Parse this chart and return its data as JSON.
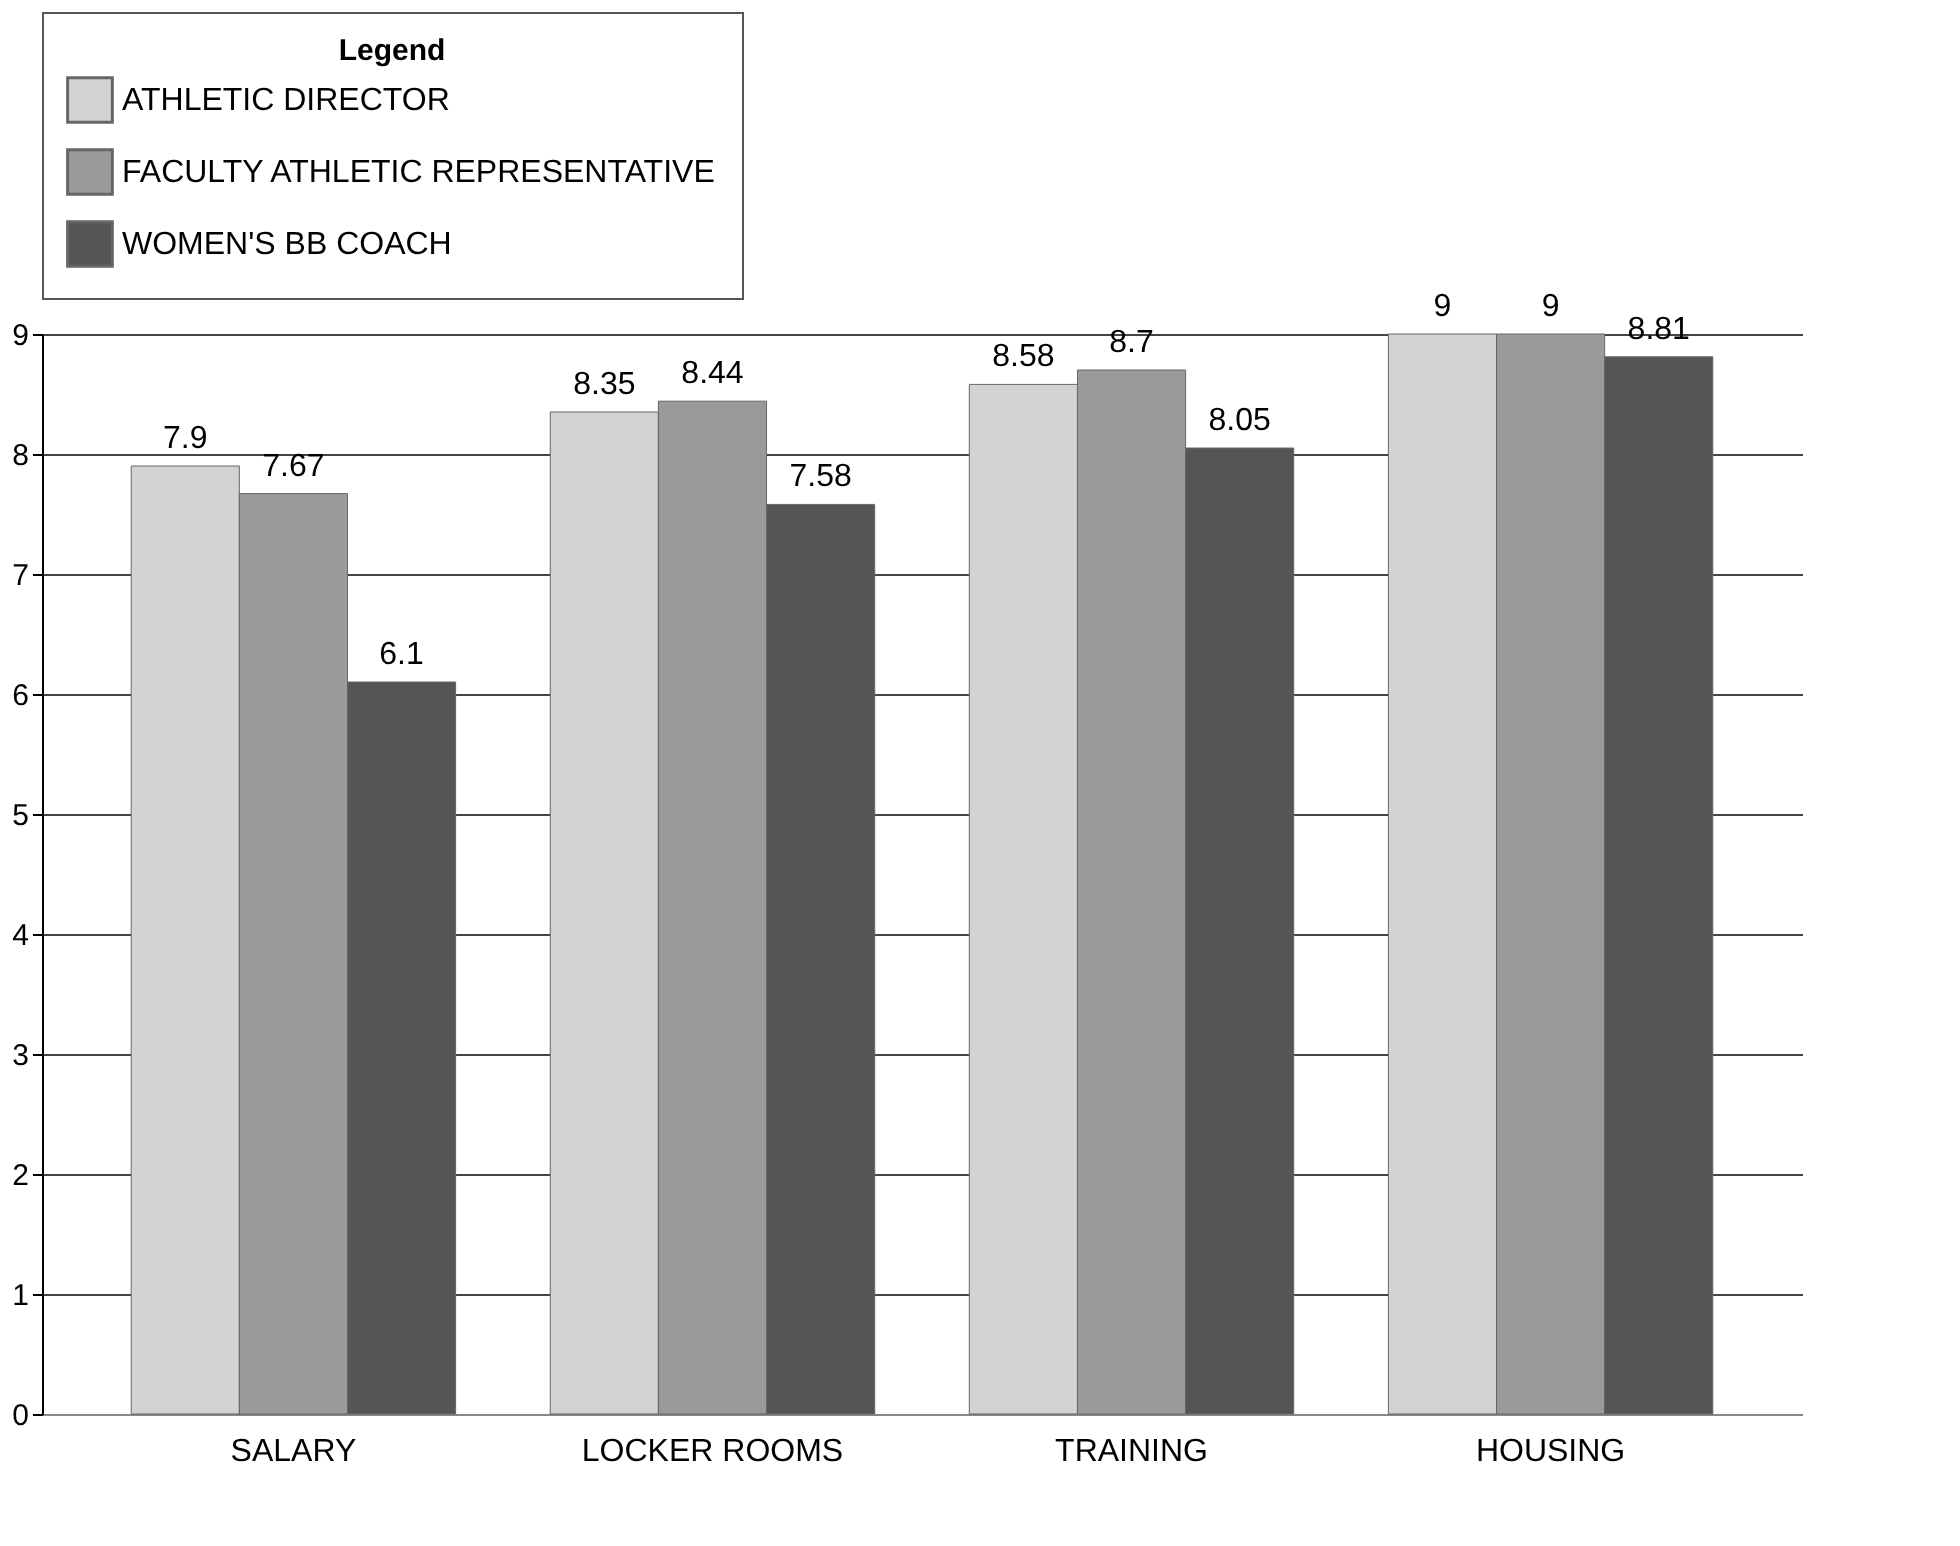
{
  "chart_data": {
    "type": "bar",
    "legend_title": "Legend",
    "categories": [
      "SALARY",
      "LOCKER ROOMS",
      "TRAINING",
      "HOUSING"
    ],
    "series": [
      {
        "name": "ATHLETIC DIRECTOR",
        "color": "#d3d3d3",
        "values": [
          7.9,
          8.35,
          8.58,
          9
        ]
      },
      {
        "name": "FACULTY ATHLETIC REPRESENTATIVE",
        "color": "#9a9a9a",
        "values": [
          7.67,
          8.44,
          8.7,
          9
        ]
      },
      {
        "name": "WOMEN'S BB COACH",
        "color": "#555555",
        "values": [
          6.1,
          7.58,
          8.05,
          8.81
        ]
      }
    ],
    "ylim": [
      0,
      9
    ],
    "yticks": [
      0,
      1,
      2,
      3,
      4,
      5,
      6,
      7,
      8,
      9
    ],
    "grid": "y",
    "legend": "top",
    "data_labels": true
  }
}
